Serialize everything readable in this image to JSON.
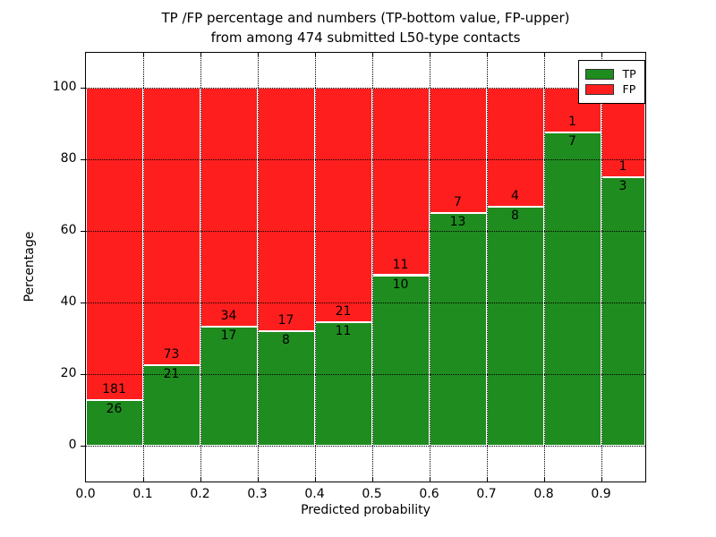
{
  "figure": {
    "title_line1": "TP /FP percentage and numbers (TP-bottom value, FP-upper)",
    "title_line2": "from among 474 submitted L50-type contacts"
  },
  "chart_data": {
    "type": "bar",
    "subtype": "stacked-percentage",
    "title": "TP /FP percentage and numbers (TP-bottom value, FP-upper) from among 474 submitted L50-type contacts",
    "xlabel": "Predicted probability",
    "ylabel": "Percentage",
    "total_contacts": 474,
    "bin_width": 0.1,
    "bin_starts": [
      0.0,
      0.1,
      0.2,
      0.3,
      0.4,
      0.5,
      0.6,
      0.7,
      0.8,
      0.9
    ],
    "x_tick_labels": [
      "0.0",
      "0.1",
      "0.2",
      "0.3",
      "0.4",
      "0.5",
      "0.6",
      "0.7",
      "0.8",
      "0.9"
    ],
    "y_ticks": [
      0,
      20,
      40,
      60,
      80,
      100
    ],
    "ylim": [
      -10,
      110
    ],
    "xlim": [
      0.0,
      0.977
    ],
    "grid": "dotted",
    "legend_position": "upper right",
    "series": [
      {
        "name": "TP",
        "role": "bottom",
        "color": "#1f8c1f",
        "counts": [
          26,
          21,
          17,
          8,
          11,
          10,
          13,
          8,
          7,
          3
        ]
      },
      {
        "name": "FP",
        "role": "top",
        "color": "#ff1e1e",
        "counts": [
          181,
          73,
          34,
          17,
          21,
          11,
          7,
          4,
          1,
          1
        ]
      }
    ],
    "tp_percent_of_bin": [
      12.6,
      22.3,
      33.3,
      32.0,
      34.4,
      47.6,
      65.0,
      66.7,
      87.5,
      75.0
    ],
    "colors": {
      "tp": "#1f8c1f",
      "fp": "#ff1e1e",
      "grid": "#000000",
      "bar_edge": "#ffffff"
    }
  },
  "legend": {
    "entries": [
      {
        "label": "TP",
        "color": "#1f8c1f"
      },
      {
        "label": "FP",
        "color": "#ff1e1e"
      }
    ]
  }
}
